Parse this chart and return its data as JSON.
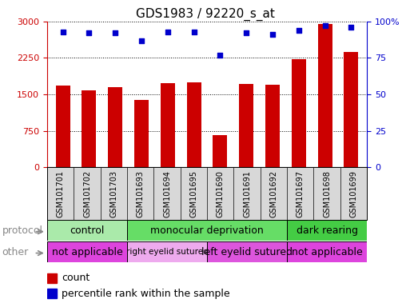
{
  "title": "GDS1983 / 92220_s_at",
  "samples": [
    "GSM101701",
    "GSM101702",
    "GSM101703",
    "GSM101693",
    "GSM101694",
    "GSM101695",
    "GSM101690",
    "GSM101691",
    "GSM101692",
    "GSM101697",
    "GSM101698",
    "GSM101699"
  ],
  "bar_values": [
    1680,
    1590,
    1650,
    1380,
    1730,
    1740,
    660,
    1720,
    1700,
    2230,
    2950,
    2380
  ],
  "dot_values": [
    93,
    92,
    92,
    87,
    93,
    93,
    77,
    92,
    91,
    94,
    97,
    96
  ],
  "bar_color": "#cc0000",
  "dot_color": "#0000cc",
  "ylim_left": [
    0,
    3000
  ],
  "ylim_right": [
    0,
    100
  ],
  "yticks_left": [
    0,
    750,
    1500,
    2250,
    3000
  ],
  "yticks_right": [
    0,
    25,
    50,
    75,
    100
  ],
  "protocol_groups": [
    {
      "label": "control",
      "start": 0,
      "end": 3,
      "color": "#aaeaaa"
    },
    {
      "label": "monocular deprivation",
      "start": 3,
      "end": 9,
      "color": "#66dd66"
    },
    {
      "label": "dark rearing",
      "start": 9,
      "end": 12,
      "color": "#44cc44"
    }
  ],
  "other_groups": [
    {
      "label": "not applicable",
      "start": 0,
      "end": 3,
      "color": "#dd44dd"
    },
    {
      "label": "right eyelid sutured",
      "start": 3,
      "end": 6,
      "color": "#eeaaee"
    },
    {
      "label": "left eyelid sutured",
      "start": 6,
      "end": 9,
      "color": "#dd55dd"
    },
    {
      "label": "not applicable",
      "start": 9,
      "end": 12,
      "color": "#dd44dd"
    }
  ],
  "legend_count_label": "count",
  "legend_pct_label": "percentile rank within the sample",
  "protocol_label": "protocol",
  "other_label": "other",
  "title_fontsize": 11,
  "axis_color_left": "#cc0000",
  "axis_color_right": "#0000cc",
  "label_fontsize": 9,
  "row_fontsize": 9,
  "sample_fontsize": 7,
  "tick_fontsize": 8
}
